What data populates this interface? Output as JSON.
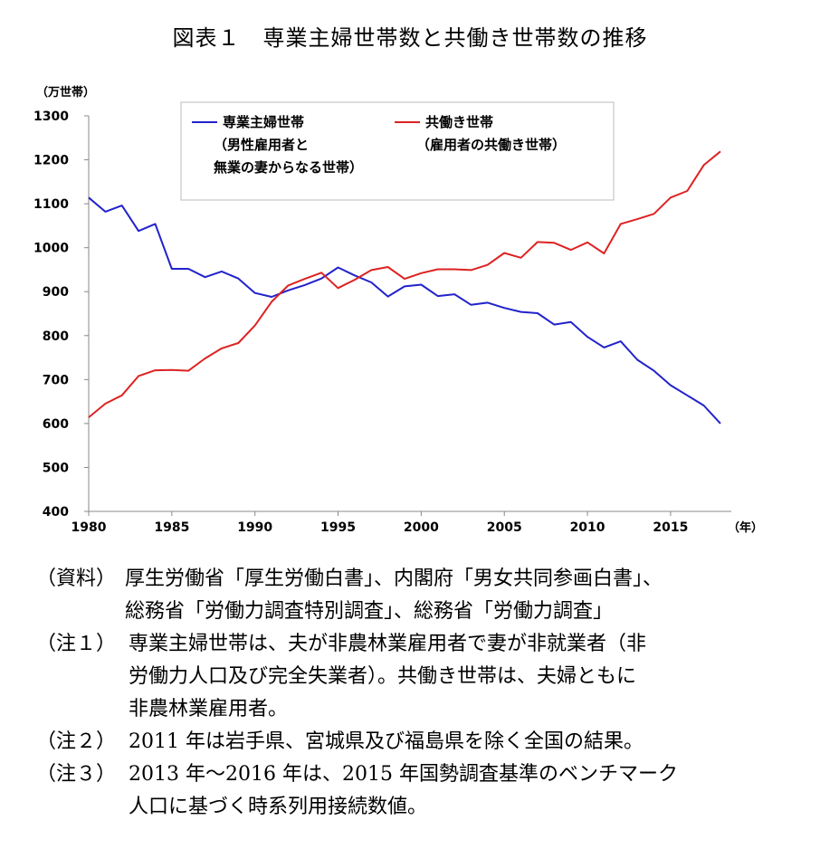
{
  "title": "図表１　専業主婦世帯数と共働き世帯数の推移",
  "chart_data": {
    "type": "line",
    "ylabel": "（万世帯）",
    "xlabel": "（年）",
    "ylim": [
      400,
      1300
    ],
    "xlim": [
      1980,
      2018
    ],
    "yticks": [
      400,
      500,
      600,
      700,
      800,
      900,
      1000,
      1100,
      1200,
      1300
    ],
    "xticks": [
      1980,
      1985,
      1990,
      1995,
      2000,
      2005,
      2010,
      2015
    ],
    "grid": false,
    "legend_position": "top",
    "x": [
      1980,
      1981,
      1982,
      1983,
      1984,
      1985,
      1986,
      1987,
      1988,
      1989,
      1990,
      1991,
      1992,
      1993,
      1994,
      1995,
      1996,
      1997,
      1998,
      1999,
      2000,
      2001,
      2002,
      2003,
      2004,
      2005,
      2006,
      2007,
      2008,
      2009,
      2010,
      2011,
      2012,
      2013,
      2014,
      2015,
      2016,
      2017,
      2018
    ],
    "series": [
      {
        "name": "専業主婦世帯",
        "name_lines": [
          "専業主婦世帯",
          "（男性雇用者と",
          "無業の妻からなる世帯）"
        ],
        "color": "#2222cc",
        "values": [
          1114,
          1082,
          1096,
          1038,
          1054,
          952,
          952,
          933,
          946,
          930,
          897,
          888,
          903,
          915,
          930,
          955,
          937,
          921,
          889,
          912,
          916,
          890,
          894,
          870,
          875,
          863,
          854,
          851,
          825,
          831,
          797,
          773,
          787,
          745,
          720,
          687,
          664,
          641,
          600
        ]
      },
      {
        "name": "共働き世帯",
        "name_lines": [
          "共働き世帯",
          "（雇用者の共働き世帯）"
        ],
        "color": "#dd2222",
        "values": [
          614,
          645,
          664,
          708,
          721,
          722,
          720,
          748,
          771,
          783,
          823,
          877,
          914,
          929,
          943,
          908,
          927,
          949,
          956,
          929,
          942,
          951,
          951,
          949,
          961,
          988,
          977,
          1013,
          1011,
          995,
          1012,
          987,
          1054,
          1065,
          1077,
          1114,
          1129,
          1188,
          1219
        ]
      }
    ]
  },
  "notes": [
    {
      "label": "（資料）",
      "lines": [
        "厚生労働省「厚生労働白書」、内閣府「男女共同参画白書」、",
        "総務省「労働力調査特別調査」、総務省「労働力調査」"
      ],
      "indent": 98
    },
    {
      "label": "（注１）",
      "lines": [
        "専業主婦世帯は、夫が非農林業雇用者で妻が非就業者（非",
        "労働力人口及び完全失業者）。共働き世帯は、夫婦ともに",
        "非農林業雇用者。"
      ],
      "indent": 102
    },
    {
      "label": "（注２）",
      "lines": [
        "2011 年は岩手県、宮城県及び福島県を除く全国の結果。"
      ],
      "indent": 102
    },
    {
      "label": "（注３）",
      "lines": [
        "2013 年～2016 年は、2015 年国勢調査基準のベンチマーク",
        "人口に基づく時系列用接続数値。"
      ],
      "indent": 102
    }
  ]
}
